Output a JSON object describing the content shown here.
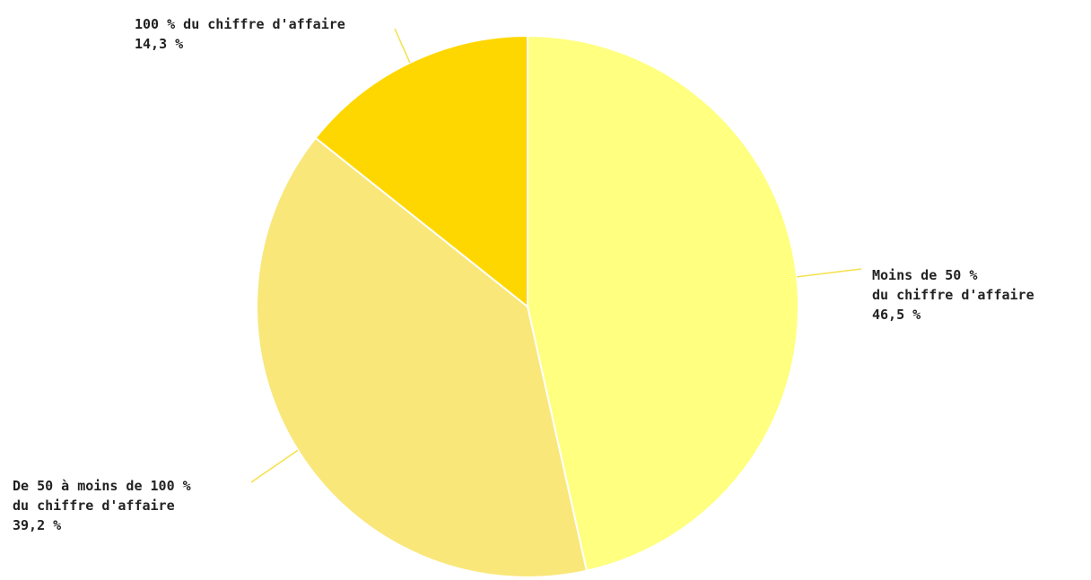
{
  "chart_data": {
    "type": "pie",
    "start_angle_deg": 0,
    "direction": "clockwise",
    "slices": [
      {
        "id": "moins-50",
        "label_lines": [
          "Moins de 50 %",
          "du chiffre d'affaire"
        ],
        "value_label": "46,5 %",
        "value": 46.5,
        "color": "#FFFF80"
      },
      {
        "id": "50-100",
        "label_lines": [
          "De 50 à moins de 100 %",
          "du chiffre d'affaire"
        ],
        "value_label": "39,2 %",
        "value": 39.2,
        "color": "#F9E77A"
      },
      {
        "id": "100",
        "label_lines": [
          "100 % du chiffre d'affaire"
        ],
        "value_label": "14,3 %",
        "value": 14.3,
        "color": "#FFD700"
      }
    ],
    "leader_line_color": "#F5E04A",
    "slice_border_color": "#ffffff"
  }
}
